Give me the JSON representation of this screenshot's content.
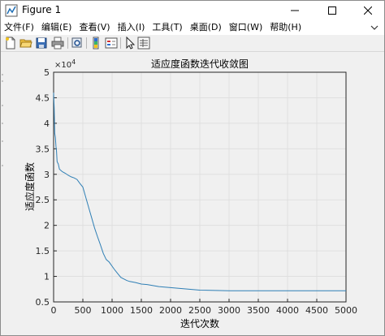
{
  "window": {
    "title": "Figure 1"
  },
  "menu": {
    "items": [
      "文件(F)",
      "编辑(E)",
      "查看(V)",
      "插入(I)",
      "工具(T)",
      "桌面(D)",
      "窗口(W)",
      "帮助(H)"
    ]
  },
  "toolbar": {
    "icons": [
      "new-figure-icon",
      "open-icon",
      "save-icon",
      "print-icon",
      "print-preview-icon",
      "link-icon",
      "insert-colorbar-icon",
      "insert-legend-icon",
      "edit-plot-icon",
      "property-inspector-icon"
    ]
  },
  "chart_data": {
    "type": "line",
    "title": "适应度函数迭代收敛图",
    "xlabel": "迭代次数",
    "ylabel": "适应度函数",
    "y_exponent_label": "×10",
    "y_exponent": "4",
    "xlim": [
      0,
      5000
    ],
    "ylim": [
      0.5,
      5
    ],
    "xticks": [
      "0",
      "500",
      "1000",
      "1500",
      "2000",
      "2500",
      "3000",
      "3500",
      "4000",
      "4500",
      "5000"
    ],
    "yticks": [
      "0.5",
      "1",
      "1.5",
      "2",
      "2.5",
      "3",
      "3.5",
      "4",
      "4.5",
      "5"
    ],
    "grid": true,
    "line_color": "#2f7fb5",
    "series": [
      {
        "x": [
          0,
          10,
          20,
          30,
          40,
          50,
          60,
          80,
          100,
          150,
          200,
          250,
          300,
          350,
          400,
          450,
          500,
          550,
          600,
          650,
          700,
          750,
          800,
          850,
          900,
          950,
          1000,
          1050,
          1100,
          1150,
          1200,
          1250,
          1300,
          1400,
          1500,
          1600,
          1700,
          1800,
          1900,
          2000,
          2100,
          2200,
          2300,
          2400,
          2500,
          3000,
          3500,
          4000,
          4500,
          5000
        ],
        "y": [
          4.6,
          4.3,
          3.8,
          3.72,
          3.55,
          3.45,
          3.25,
          3.2,
          3.1,
          3.05,
          3.02,
          2.98,
          2.95,
          2.93,
          2.9,
          2.82,
          2.75,
          2.55,
          2.35,
          2.15,
          1.95,
          1.78,
          1.62,
          1.45,
          1.33,
          1.28,
          1.2,
          1.12,
          1.05,
          0.98,
          0.95,
          0.92,
          0.9,
          0.88,
          0.85,
          0.84,
          0.82,
          0.8,
          0.79,
          0.78,
          0.77,
          0.76,
          0.75,
          0.74,
          0.73,
          0.72,
          0.72,
          0.72,
          0.72,
          0.72
        ]
      }
    ]
  }
}
